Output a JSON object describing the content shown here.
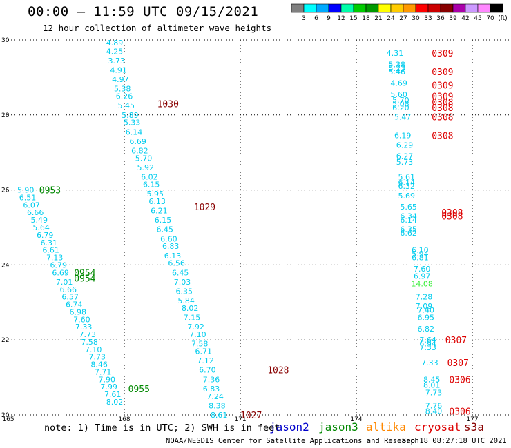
{
  "header": {
    "title": "00:00 – 11:59 UTC 09/15/2021",
    "subtitle": "12 hour collection of altimeter wave heights"
  },
  "scale": {
    "colors": [
      "#808080",
      "#00ffff",
      "#00aaff",
      "#0000ff",
      "#00ffaa",
      "#00cc00",
      "#009900",
      "#ffff00",
      "#ffcc00",
      "#ff9900",
      "#ff0000",
      "#cc0000",
      "#880000",
      "#aa00aa",
      "#cc99ff",
      "#ff88ff",
      "#000000"
    ],
    "labels": [
      "3",
      "6",
      "9",
      "12",
      "15",
      "18",
      "21",
      "24",
      "27",
      "30",
      "33",
      "36",
      "39",
      "42",
      "45",
      "70",
      "(ft)"
    ]
  },
  "footer": {
    "note": "note:  1) Time is in UTC;  2) SWH is in feet",
    "satellites": [
      {
        "name": "jason2",
        "color": "#0000cc"
      },
      {
        "name": "jason3",
        "color": "#008800"
      },
      {
        "name": "altika",
        "color": "#ff8800"
      },
      {
        "name": "cryosat",
        "color": "#dd0000"
      },
      {
        "name": "s3a",
        "color": "#880000"
      }
    ],
    "credit": "NOAA/NESDIS Center for Satellite Applications and Research",
    "timestamp": "Sep 18 08:27:18 UTC 2021"
  },
  "chart_data": {
    "type": "scatter",
    "xlim": [
      165,
      178
    ],
    "ylim": [
      20,
      30
    ],
    "x_ticks": [
      165,
      168,
      171,
      174,
      177
    ],
    "y_ticks": [
      20,
      22,
      24,
      26,
      28,
      30
    ],
    "y_tick_labels": [
      "20",
      "22",
      "24",
      "26",
      "28",
      "30"
    ],
    "grid": true,
    "time_labels": [
      {
        "x": 168.85,
        "y": 28.3,
        "text": "1030",
        "color": "#880000"
      },
      {
        "x": 169.8,
        "y": 25.55,
        "text": "1029",
        "color": "#880000"
      },
      {
        "x": 171.7,
        "y": 21.2,
        "text": "1028",
        "color": "#880000"
      },
      {
        "x": 171.0,
        "y": 20.0,
        "text": "1027",
        "color": "#880000"
      },
      {
        "x": 165.8,
        "y": 26.0,
        "text": "0953",
        "color": "#008800"
      },
      {
        "x": 166.7,
        "y": 23.8,
        "text": "0954",
        "color": "#008800"
      },
      {
        "x": 166.7,
        "y": 23.65,
        "text": "0954",
        "color": "#008800"
      },
      {
        "x": 168.1,
        "y": 20.7,
        "text": "0955",
        "color": "#008800"
      },
      {
        "x": 175.95,
        "y": 29.65,
        "text": "0309",
        "color": "#dd0000"
      },
      {
        "x": 175.95,
        "y": 29.15,
        "text": "0309",
        "color": "#dd0000"
      },
      {
        "x": 175.95,
        "y": 28.8,
        "text": "0309",
        "color": "#dd0000"
      },
      {
        "x": 175.95,
        "y": 28.5,
        "text": "0309",
        "color": "#dd0000"
      },
      {
        "x": 175.95,
        "y": 28.35,
        "text": "0308",
        "color": "#dd0000"
      },
      {
        "x": 175.95,
        "y": 28.2,
        "text": "0308",
        "color": "#dd0000"
      },
      {
        "x": 175.95,
        "y": 27.95,
        "text": "0308",
        "color": "#dd0000"
      },
      {
        "x": 175.95,
        "y": 27.45,
        "text": "0308",
        "color": "#dd0000"
      },
      {
        "x": 176.2,
        "y": 25.4,
        "text": "0308",
        "color": "#dd0000"
      },
      {
        "x": 176.2,
        "y": 25.3,
        "text": "0308",
        "color": "#dd0000"
      },
      {
        "x": 176.3,
        "y": 22.0,
        "text": "0307",
        "color": "#dd0000"
      },
      {
        "x": 176.35,
        "y": 21.4,
        "text": "0307",
        "color": "#dd0000"
      },
      {
        "x": 176.4,
        "y": 20.95,
        "text": "0306",
        "color": "#dd0000"
      },
      {
        "x": 176.4,
        "y": 20.1,
        "text": "0306",
        "color": "#dd0000"
      }
    ],
    "points": [
      {
        "x": 167.75,
        "y": 29.93,
        "v": "4.89"
      },
      {
        "x": 167.75,
        "y": 29.7,
        "v": "4.25"
      },
      {
        "x": 167.8,
        "y": 29.45,
        "v": "3.73"
      },
      {
        "x": 167.85,
        "y": 29.2,
        "v": "4.91"
      },
      {
        "x": 167.9,
        "y": 28.95,
        "v": "4.97"
      },
      {
        "x": 167.95,
        "y": 28.7,
        "v": "5.38"
      },
      {
        "x": 168.0,
        "y": 28.5,
        "v": "6.26"
      },
      {
        "x": 168.05,
        "y": 28.25,
        "v": "5.45"
      },
      {
        "x": 168.15,
        "y": 28.0,
        "v": "5.89"
      },
      {
        "x": 168.2,
        "y": 27.8,
        "v": "5.33"
      },
      {
        "x": 168.25,
        "y": 27.55,
        "v": "6.14"
      },
      {
        "x": 168.35,
        "y": 27.3,
        "v": "6.69"
      },
      {
        "x": 168.4,
        "y": 27.05,
        "v": "6.82"
      },
      {
        "x": 168.5,
        "y": 26.85,
        "v": "5.70"
      },
      {
        "x": 168.55,
        "y": 26.6,
        "v": "5.92"
      },
      {
        "x": 168.65,
        "y": 26.35,
        "v": "6.02"
      },
      {
        "x": 168.7,
        "y": 26.15,
        "v": "6.15"
      },
      {
        "x": 168.8,
        "y": 25.9,
        "v": "5.95"
      },
      {
        "x": 168.85,
        "y": 25.7,
        "v": "6.13"
      },
      {
        "x": 168.9,
        "y": 25.45,
        "v": "6.21"
      },
      {
        "x": 169.0,
        "y": 25.2,
        "v": "6.15"
      },
      {
        "x": 169.05,
        "y": 24.95,
        "v": "6.45"
      },
      {
        "x": 169.15,
        "y": 24.7,
        "v": "6.60"
      },
      {
        "x": 169.2,
        "y": 24.5,
        "v": "6.83"
      },
      {
        "x": 169.25,
        "y": 24.25,
        "v": "6.13"
      },
      {
        "x": 169.35,
        "y": 24.05,
        "v": "6.56"
      },
      {
        "x": 169.45,
        "y": 23.8,
        "v": "6.45"
      },
      {
        "x": 169.5,
        "y": 23.55,
        "v": "7.03"
      },
      {
        "x": 169.55,
        "y": 23.3,
        "v": "6.35"
      },
      {
        "x": 169.6,
        "y": 23.05,
        "v": "5.84"
      },
      {
        "x": 169.7,
        "y": 22.85,
        "v": "8.02"
      },
      {
        "x": 169.75,
        "y": 22.6,
        "v": "7.15"
      },
      {
        "x": 169.85,
        "y": 22.35,
        "v": "7.92"
      },
      {
        "x": 169.9,
        "y": 22.15,
        "v": "7.10"
      },
      {
        "x": 169.95,
        "y": 21.9,
        "v": "7.58"
      },
      {
        "x": 170.05,
        "y": 21.7,
        "v": "6.71"
      },
      {
        "x": 170.1,
        "y": 21.45,
        "v": "7.12"
      },
      {
        "x": 170.15,
        "y": 21.2,
        "v": "6.70"
      },
      {
        "x": 170.25,
        "y": 20.95,
        "v": "7.36"
      },
      {
        "x": 170.25,
        "y": 20.7,
        "v": "6.83"
      },
      {
        "x": 170.35,
        "y": 20.5,
        "v": "7.24"
      },
      {
        "x": 170.4,
        "y": 20.25,
        "v": "8.38"
      },
      {
        "x": 170.45,
        "y": 20.0,
        "v": "8.61"
      },
      {
        "x": 165.45,
        "y": 26.0,
        "v": "5.90"
      },
      {
        "x": 165.5,
        "y": 25.8,
        "v": "6.51"
      },
      {
        "x": 165.6,
        "y": 25.6,
        "v": "6.07"
      },
      {
        "x": 165.7,
        "y": 25.4,
        "v": "6.66"
      },
      {
        "x": 165.8,
        "y": 25.2,
        "v": "5.49"
      },
      {
        "x": 165.85,
        "y": 25.0,
        "v": "5.64"
      },
      {
        "x": 165.95,
        "y": 24.8,
        "v": "6.79"
      },
      {
        "x": 166.05,
        "y": 24.6,
        "v": "6.31"
      },
      {
        "x": 166.1,
        "y": 24.4,
        "v": "6.61"
      },
      {
        "x": 166.2,
        "y": 24.2,
        "v": "7.13"
      },
      {
        "x": 166.3,
        "y": 24.0,
        "v": "6.79"
      },
      {
        "x": 166.35,
        "y": 23.8,
        "v": "6.69"
      },
      {
        "x": 166.45,
        "y": 23.55,
        "v": "7.01"
      },
      {
        "x": 166.55,
        "y": 23.35,
        "v": "6.66"
      },
      {
        "x": 166.6,
        "y": 23.15,
        "v": "6.57"
      },
      {
        "x": 166.7,
        "y": 22.95,
        "v": "6.74"
      },
      {
        "x": 166.8,
        "y": 22.75,
        "v": "6.98"
      },
      {
        "x": 166.9,
        "y": 22.55,
        "v": "7.60"
      },
      {
        "x": 166.95,
        "y": 22.35,
        "v": "7.33"
      },
      {
        "x": 167.05,
        "y": 22.15,
        "v": "7.73"
      },
      {
        "x": 167.1,
        "y": 21.95,
        "v": "7.58"
      },
      {
        "x": 167.2,
        "y": 21.75,
        "v": "7.10"
      },
      {
        "x": 167.3,
        "y": 21.55,
        "v": "7.73"
      },
      {
        "x": 167.35,
        "y": 21.35,
        "v": "8.46"
      },
      {
        "x": 167.45,
        "y": 21.15,
        "v": "7.71"
      },
      {
        "x": 167.55,
        "y": 20.95,
        "v": "7.90"
      },
      {
        "x": 167.6,
        "y": 20.75,
        "v": "7.99"
      },
      {
        "x": 167.7,
        "y": 20.55,
        "v": "7.61"
      },
      {
        "x": 167.75,
        "y": 20.35,
        "v": "8.02"
      },
      {
        "x": 175.0,
        "y": 29.65,
        "v": "4.31"
      },
      {
        "x": 175.05,
        "y": 29.35,
        "v": "5.38"
      },
      {
        "x": 175.05,
        "y": 29.25,
        "v": "5.23"
      },
      {
        "x": 175.05,
        "y": 29.15,
        "v": "5.46"
      },
      {
        "x": 175.1,
        "y": 28.85,
        "v": "4.69"
      },
      {
        "x": 175.1,
        "y": 28.55,
        "v": "5.60"
      },
      {
        "x": 175.15,
        "y": 28.4,
        "v": "5.70"
      },
      {
        "x": 175.15,
        "y": 28.3,
        "v": "5.08"
      },
      {
        "x": 175.15,
        "y": 28.2,
        "v": "6.20"
      },
      {
        "x": 175.2,
        "y": 27.95,
        "v": "5.47"
      },
      {
        "x": 175.2,
        "y": 27.45,
        "v": "6.19"
      },
      {
        "x": 175.25,
        "y": 27.2,
        "v": "6.29"
      },
      {
        "x": 175.25,
        "y": 26.9,
        "v": "6.27"
      },
      {
        "x": 175.25,
        "y": 26.75,
        "v": "5.73"
      },
      {
        "x": 175.3,
        "y": 26.35,
        "v": "5.61"
      },
      {
        "x": 175.3,
        "y": 26.2,
        "v": "6.14"
      },
      {
        "x": 175.3,
        "y": 26.1,
        "v": "6.32"
      },
      {
        "x": 175.3,
        "y": 25.85,
        "v": "5.69"
      },
      {
        "x": 175.35,
        "y": 25.55,
        "v": "5.65"
      },
      {
        "x": 175.35,
        "y": 25.3,
        "v": "6.34"
      },
      {
        "x": 175.35,
        "y": 25.2,
        "v": "6.14"
      },
      {
        "x": 175.35,
        "y": 24.95,
        "v": "6.35"
      },
      {
        "x": 175.35,
        "y": 24.85,
        "v": "6.62"
      },
      {
        "x": 175.65,
        "y": 24.4,
        "v": "6.10"
      },
      {
        "x": 175.65,
        "y": 24.3,
        "v": "5.94"
      },
      {
        "x": 175.65,
        "y": 24.2,
        "v": "6.81"
      },
      {
        "x": 175.7,
        "y": 23.9,
        "v": "7.60"
      },
      {
        "x": 175.7,
        "y": 23.7,
        "v": "6.97"
      },
      {
        "x": 175.7,
        "y": 23.5,
        "v": "14.08",
        "color": "#33ee33"
      },
      {
        "x": 175.75,
        "y": 23.15,
        "v": "7.28"
      },
      {
        "x": 175.75,
        "y": 22.9,
        "v": "7.09"
      },
      {
        "x": 175.8,
        "y": 22.8,
        "v": "7.40"
      },
      {
        "x": 175.8,
        "y": 22.6,
        "v": "6.95"
      },
      {
        "x": 175.8,
        "y": 22.3,
        "v": "6.82"
      },
      {
        "x": 175.85,
        "y": 22.0,
        "v": "7.64"
      },
      {
        "x": 175.85,
        "y": 21.9,
        "v": "6.94"
      },
      {
        "x": 175.85,
        "y": 21.8,
        "v": "7.33"
      },
      {
        "x": 175.9,
        "y": 21.4,
        "v": "7.33"
      },
      {
        "x": 175.95,
        "y": 20.95,
        "v": "8.45"
      },
      {
        "x": 175.95,
        "y": 20.8,
        "v": "8.01"
      },
      {
        "x": 176.0,
        "y": 20.6,
        "v": "7.73"
      },
      {
        "x": 176.0,
        "y": 20.25,
        "v": "7.76"
      },
      {
        "x": 176.0,
        "y": 20.1,
        "v": "8.40"
      }
    ]
  }
}
